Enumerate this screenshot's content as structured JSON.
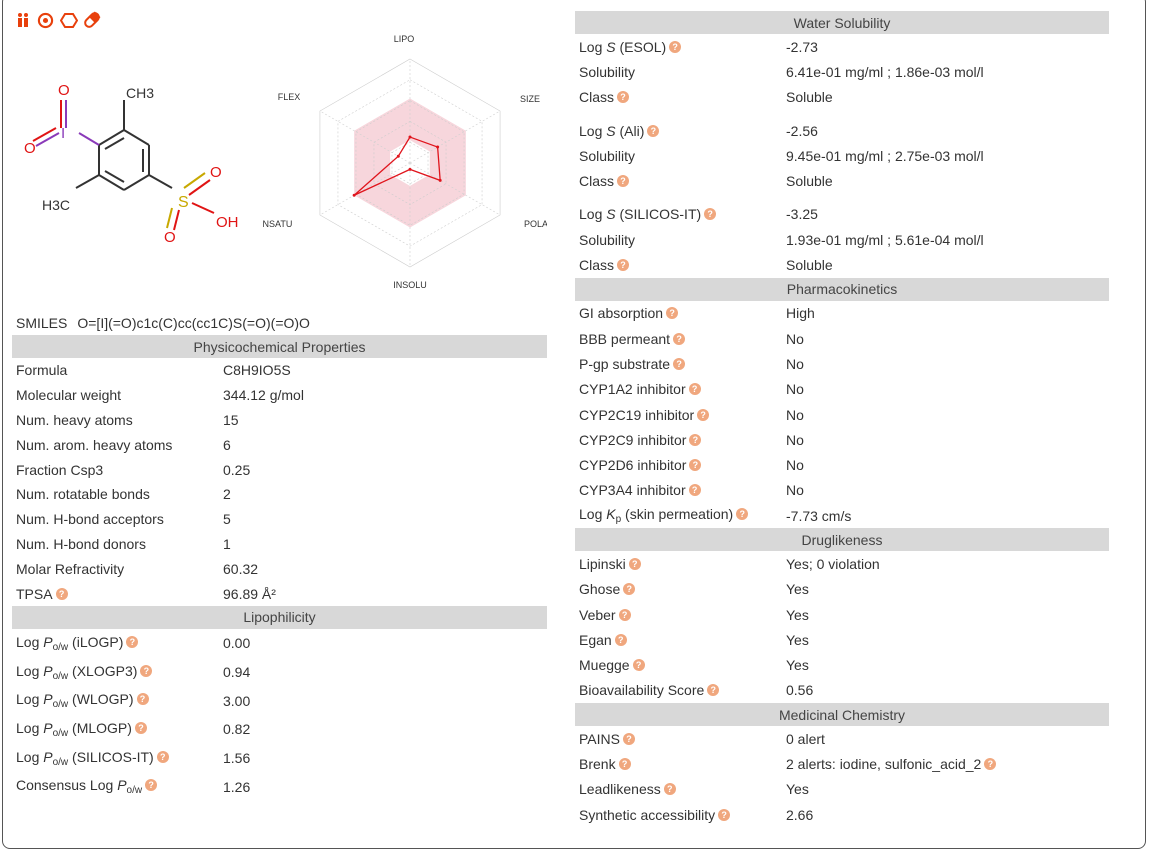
{
  "icons": [
    "person-pair-icon",
    "target-icon",
    "hexagon-icon",
    "pill-icon"
  ],
  "radar": {
    "labels": {
      "top": "LIPO",
      "upper_right": "SIZE",
      "lower_right": "POLAR",
      "bottom": "INSOLU",
      "lower_left": "INSATU",
      "upper_left": "FLEX"
    },
    "values": {
      "lipo": 0.35,
      "size": 0.45,
      "polar": 0.5,
      "insolu": 0.02,
      "insatu": 1.0,
      "flex": 0.14
    }
  },
  "structure": {
    "labels": {
      "ch3_top": "CH3",
      "h3c": "H3C",
      "oh": "OH",
      "s": "S",
      "i": "I",
      "o": "O"
    }
  },
  "smiles": {
    "label": "SMILES",
    "value": "O=[I](=O)c1c(C)cc(cc1C)S(=O)(=O)O"
  },
  "physchem": {
    "header": "Physicochemical Properties",
    "rows": [
      {
        "k": "Formula",
        "v": "C8H9IO5S"
      },
      {
        "k": "Molecular weight",
        "v": "344.12 g/mol"
      },
      {
        "k": "Num. heavy atoms",
        "v": "15"
      },
      {
        "k": "Num. arom. heavy atoms",
        "v": "6"
      },
      {
        "k": "Fraction Csp3",
        "v": "0.25"
      },
      {
        "k": "Num. rotatable bonds",
        "v": "2"
      },
      {
        "k": "Num. H-bond acceptors",
        "v": "5"
      },
      {
        "k": "Num. H-bond donors",
        "v": "1"
      },
      {
        "k": "Molar Refractivity",
        "v": "60.32"
      },
      {
        "k": "TPSA",
        "v": "96.89 Å²"
      }
    ]
  },
  "lipo": {
    "header": "Lipophilicity",
    "log": "Log",
    "p": "P",
    "sub": "o/w",
    "consensus": "Consensus Log",
    "rows": [
      {
        "k": "(iLOGP)",
        "v": "0.00"
      },
      {
        "k": "(XLOGP3)",
        "v": "0.94"
      },
      {
        "k": "(WLOGP)",
        "v": "3.00"
      },
      {
        "k": "(MLOGP)",
        "v": "0.82"
      },
      {
        "k": "(SILICOS-IT)",
        "v": "1.56"
      }
    ],
    "consensus_value": "1.26"
  },
  "water": {
    "header": "Water Solubility",
    "log": "Log",
    "s": "S",
    "esol": {
      "method": "(ESOL)",
      "logs": "-2.73",
      "solubility_label": "Solubility",
      "solubility": "6.41e-01 mg/ml ; 1.86e-03 mol/l",
      "class_label": "Class",
      "class": "Soluble"
    },
    "ali": {
      "method": "(Ali)",
      "logs": "-2.56",
      "solubility_label": "Solubility",
      "solubility": "9.45e-01 mg/ml ; 2.75e-03 mol/l",
      "class_label": "Class",
      "class": "Soluble"
    },
    "silicos": {
      "method": "(SILICOS-IT)",
      "logs": "-3.25",
      "solubility_label": "Solubility",
      "solubility": "1.93e-01 mg/ml ; 5.61e-04 mol/l",
      "class_label": "Class",
      "class": "Soluble"
    }
  },
  "pk": {
    "header": "Pharmacokinetics",
    "rows": [
      {
        "k": "GI absorption",
        "v": "High"
      },
      {
        "k": "BBB permeant",
        "v": "No"
      },
      {
        "k": "P-gp substrate",
        "v": "No"
      },
      {
        "k": "CYP1A2 inhibitor",
        "v": "No"
      },
      {
        "k": "CYP2C19 inhibitor",
        "v": "No"
      },
      {
        "k": "CYP2C9 inhibitor",
        "v": "No"
      },
      {
        "k": "CYP2D6 inhibitor",
        "v": "No"
      },
      {
        "k": "CYP3A4 inhibitor",
        "v": "No"
      }
    ],
    "kp": {
      "log": "Log",
      "k": "K",
      "sub": "p",
      "rest": "(skin permeation)",
      "v": "-7.73 cm/s"
    }
  },
  "drug": {
    "header": "Druglikeness",
    "rows": [
      {
        "k": "Lipinski",
        "v": "Yes; 0 violation"
      },
      {
        "k": "Ghose",
        "v": "Yes"
      },
      {
        "k": "Veber",
        "v": "Yes"
      },
      {
        "k": "Egan",
        "v": "Yes"
      },
      {
        "k": "Muegge",
        "v": "Yes"
      },
      {
        "k": "Bioavailability Score",
        "v": "0.56"
      }
    ]
  },
  "medchem": {
    "header": "Medicinal Chemistry",
    "rows": [
      {
        "k": "PAINS",
        "v": "0 alert"
      },
      {
        "k": "Brenk",
        "v": "2 alerts: iodine, sulfonic_acid_2"
      },
      {
        "k": "Leadlikeness",
        "v": "Yes"
      },
      {
        "k": "Synthetic accessibility",
        "v": "2.66"
      }
    ]
  },
  "colors": {
    "accent": "#e8400c",
    "header_bg": "#d8d8d8",
    "help": "#f0a77e",
    "radar_fill": "#f7d6dc",
    "radar_line": "#e0141c"
  }
}
